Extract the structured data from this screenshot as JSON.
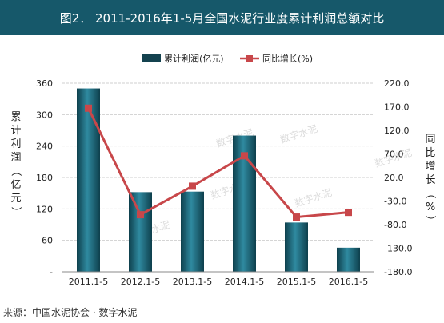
{
  "header": {
    "title": "图2． 2011-2016年1-5月全国水泥行业度累计利润总额对比"
  },
  "footer": {
    "source": "来源：中国水泥协会 · 数字水泥"
  },
  "watermark": {
    "text": "数字水泥"
  },
  "chart_data": {
    "type": "bar",
    "title": "图2． 2011-2016年1-5月全国水泥行业度累计利润总额对比",
    "categories": [
      "2011.1-5",
      "2012.1-5",
      "2013.1-5",
      "2014.1-5",
      "2015.1-5",
      "2016.1-5"
    ],
    "series": [
      {
        "name": "累计利润(亿元)",
        "type": "bar",
        "axis": "left",
        "color": "#1c6a7e",
        "values": [
          350,
          152,
          153,
          260,
          94,
          46
        ]
      },
      {
        "name": "同比增长(%)",
        "type": "line",
        "axis": "right",
        "color": "#c8474a",
        "values": [
          167,
          -59,
          1.5,
          66,
          -64,
          -54
        ]
      }
    ],
    "left_axis": {
      "label": "累计利润（亿元）",
      "ylim": [
        0,
        360
      ],
      "ticks": [
        0,
        60,
        120,
        180,
        240,
        300,
        360
      ],
      "tick_labels": [
        "-",
        "60",
        "120",
        "180",
        "240",
        "300",
        "360"
      ]
    },
    "right_axis": {
      "label": "同比增长（%）",
      "ylim": [
        -180,
        220
      ],
      "ticks": [
        -180,
        -130,
        -80,
        -30,
        20,
        70,
        120,
        170,
        220
      ],
      "tick_labels": [
        "-180.0",
        "-130.0",
        "-80.0",
        "-30.0",
        "20.0",
        "70.0",
        "120.0",
        "170.0",
        "220.0"
      ]
    },
    "legend": {
      "position": "top"
    },
    "grid": true
  }
}
